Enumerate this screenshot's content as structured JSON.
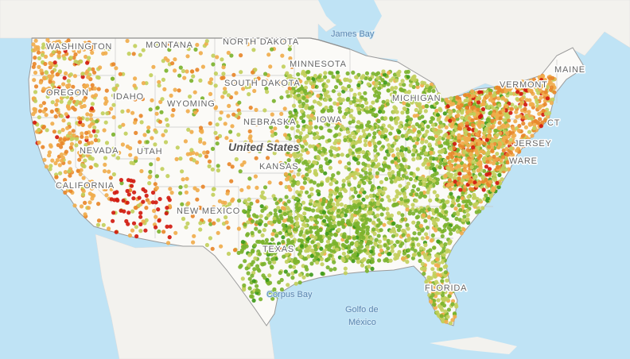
{
  "map": {
    "country_label": "United States",
    "state_labels": [
      {
        "id": "washington",
        "text": "WASHINGTON"
      },
      {
        "id": "oregon",
        "text": "OREGON"
      },
      {
        "id": "idaho",
        "text": "IDAHO"
      },
      {
        "id": "montana",
        "text": "MONTANA"
      },
      {
        "id": "wyoming",
        "text": "WYOMING"
      },
      {
        "id": "nevada",
        "text": "NEVADA"
      },
      {
        "id": "utah",
        "text": "UTAH"
      },
      {
        "id": "california",
        "text": "CALIFORNIA"
      },
      {
        "id": "new-mexico",
        "text": "NEW MEXICO"
      },
      {
        "id": "north-dakota",
        "text": "NORTH DAKOTA"
      },
      {
        "id": "south-dakota",
        "text": "SOUTH DAKOTA"
      },
      {
        "id": "nebraska",
        "text": "NEBRASKA"
      },
      {
        "id": "kansas",
        "text": "KANSAS"
      },
      {
        "id": "minnesota",
        "text": "MINNESOTA"
      },
      {
        "id": "iowa",
        "text": "IOWA"
      },
      {
        "id": "michigan",
        "text": "MICHIGAN"
      },
      {
        "id": "texas",
        "text": "TEXAS"
      },
      {
        "id": "florida",
        "text": "FLORIDA"
      },
      {
        "id": "vermont",
        "text": "VERMONT"
      },
      {
        "id": "maine",
        "text": "MAINE"
      },
      {
        "id": "connecticut",
        "text": "CT"
      },
      {
        "id": "new-jersey",
        "text": "JERSEY"
      },
      {
        "id": "delaware",
        "text": "WARE"
      }
    ],
    "water_labels": [
      {
        "id": "james-bay",
        "text": "James Bay"
      },
      {
        "id": "gulf-of-mexico",
        "text": "Golfo de\nMéxico"
      },
      {
        "id": "corpus-bay",
        "text": "Corpus Bay"
      }
    ],
    "colors": {
      "water": "#bfe3f5",
      "land": "#fbfaf7",
      "foreign_land": "#f3f2ee",
      "border": "#9a9a9a",
      "state_border": "#c9c9c9",
      "dot_dark_green": "#3f9a1a",
      "dot_green": "#7cb32e",
      "dot_yellow_green": "#c2cf5c",
      "dot_light_orange": "#f0ac4c",
      "dot_orange": "#e8872a",
      "dot_red": "#d11a0f"
    }
  }
}
